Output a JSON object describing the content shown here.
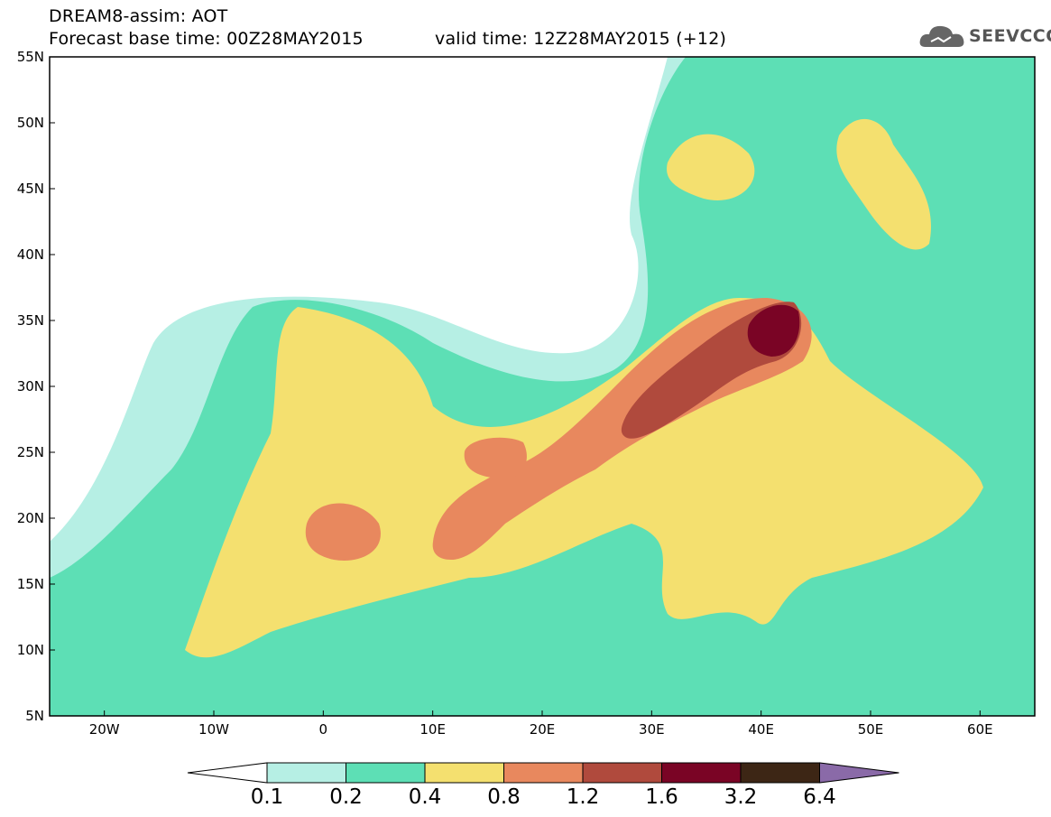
{
  "title": {
    "line1": "DREAM8-assim: AOT",
    "line2_base": "Forecast base time: 00Z28MAY2015",
    "line2_valid": "valid time: 12Z28MAY2015 (+12)"
  },
  "logo": {
    "text": "SEEVCCC",
    "icon": "cloud-icon"
  },
  "map": {
    "lon_range": [
      -25,
      65
    ],
    "lat_range": [
      5,
      55
    ],
    "lon_labels": [
      "20W",
      "10W",
      "0",
      "10E",
      "20E",
      "30E",
      "40E",
      "50E",
      "60E"
    ],
    "lat_labels": [
      "5N",
      "10N",
      "15N",
      "20N",
      "25N",
      "30N",
      "35N",
      "40N",
      "45N",
      "50N",
      "55N"
    ]
  },
  "colorbar": {
    "labels": [
      "0.1",
      "0.2",
      "0.4",
      "0.8",
      "1.2",
      "1.6",
      "3.2",
      "6.4"
    ],
    "colors": [
      "#b6efe4",
      "#5ddfb5",
      "#f4e06f",
      "#e8885e",
      "#b04a3d",
      "#7a0425",
      "#3d2615",
      "#8a6aa8"
    ],
    "under_color": "#ffffff"
  }
}
